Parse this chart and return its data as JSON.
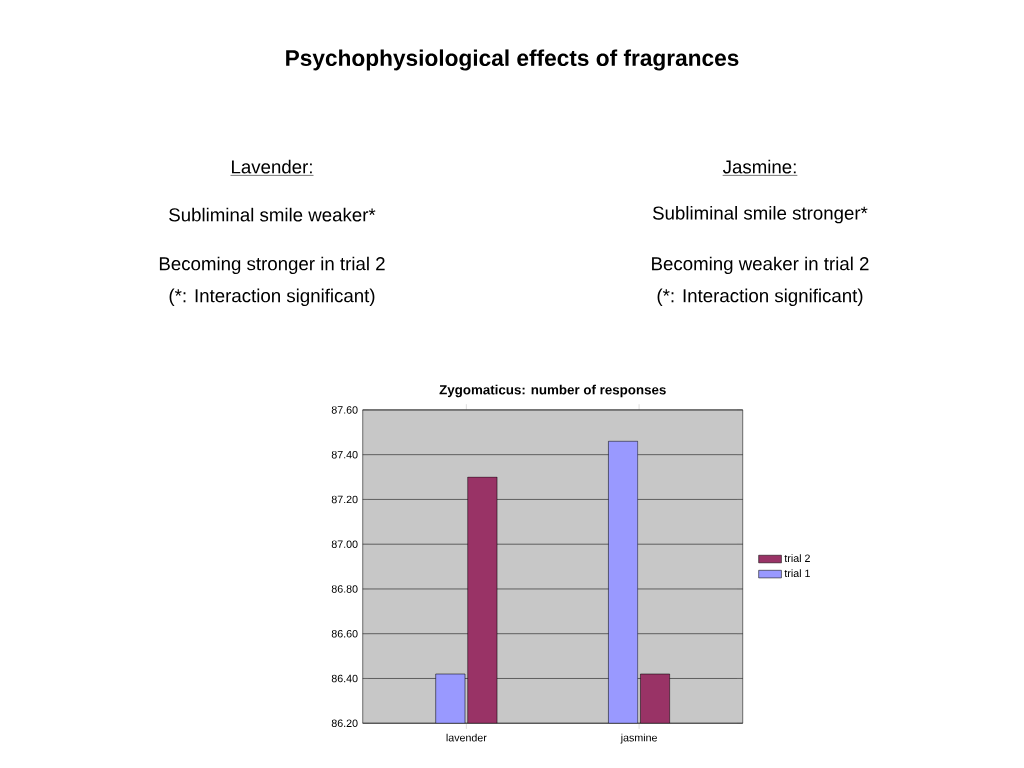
{
  "chart_data": {
    "type": "bar",
    "title": "Zygomaticus: number of responses",
    "categories": [
      "lavender",
      "jasmine"
    ],
    "series": [
      {
        "name": "trial 1",
        "color": "#9999ff",
        "values": [
          86.42,
          87.46
        ]
      },
      {
        "name": "trial 2",
        "color": "#993366",
        "values": [
          87.3,
          86.42
        ]
      }
    ],
    "ylim": [
      86.2,
      87.6
    ],
    "yticks": [
      {
        "value": 86.2,
        "label": "86.20"
      },
      {
        "value": 86.4,
        "label": "86.40"
      },
      {
        "value": 86.6,
        "label": "86.60"
      },
      {
        "value": 86.8,
        "label": "86.80"
      },
      {
        "value": 87.0,
        "label": "87.00"
      },
      {
        "value": 87.2,
        "label": "87.20"
      },
      {
        "value": 87.4,
        "label": "87.40"
      },
      {
        "value": 87.6,
        "label": "87.60"
      }
    ],
    "grid": "y",
    "legend": "right",
    "annotations": [
      "Psychophysiological effects of fragrances",
      "Lavender:",
      "Subliminal smile weaker*",
      "Becoming stronger in trial 2",
      "(*: Interaction significant)",
      "Jasmine:",
      "Subliminal smile stronger*",
      "Becoming weaker in trial 2",
      "(*: Interaction significant)"
    ]
  }
}
